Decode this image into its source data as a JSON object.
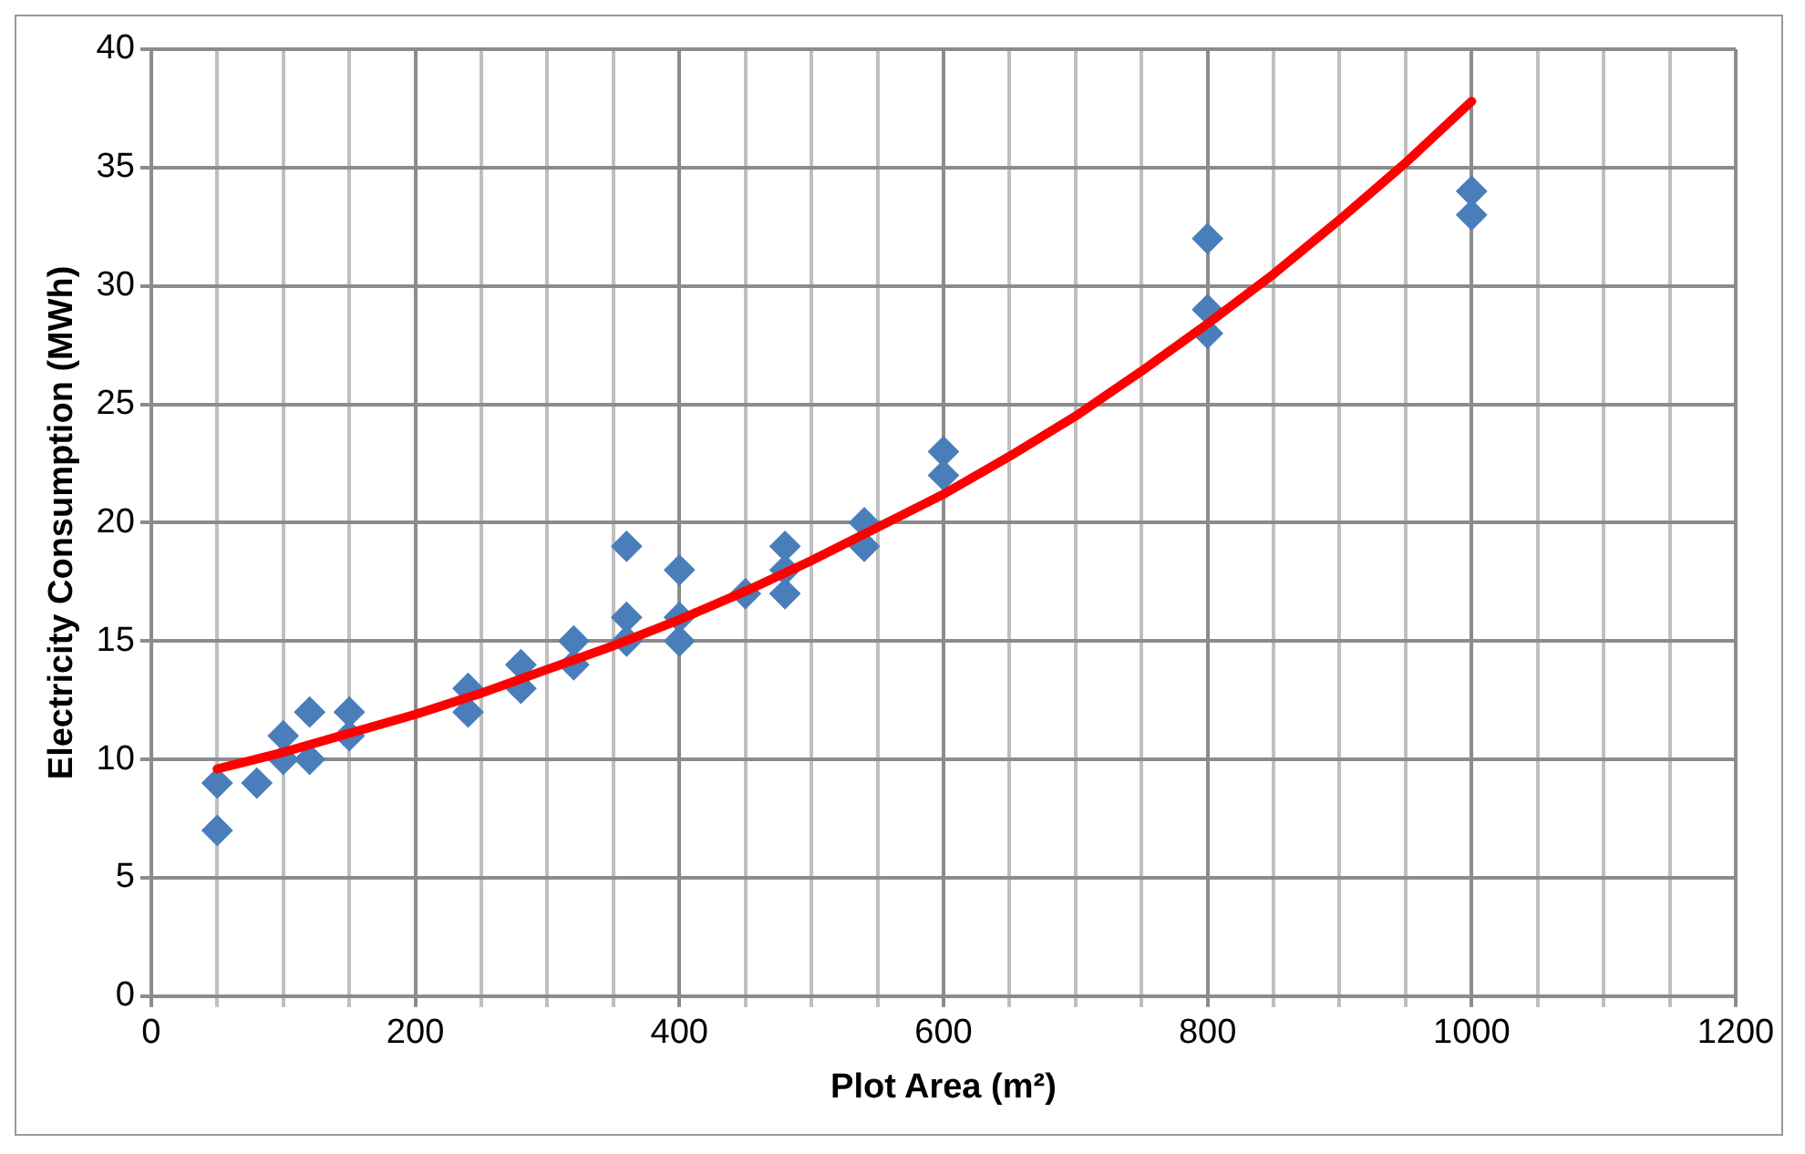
{
  "chart_data": {
    "type": "scatter",
    "xlabel": "Plot Area (m²)",
    "ylabel": "Electricity Consumption (MWh)",
    "xlim": [
      0,
      1200
    ],
    "ylim": [
      0,
      40
    ],
    "xticks": [
      0,
      {
        "value": 50,
        "label": null
      },
      {
        "value": 100,
        "label": null
      },
      {
        "value": 150,
        "label": null
      },
      200,
      {
        "value": 250,
        "label": null
      },
      {
        "value": 300,
        "label": null
      },
      {
        "value": 350,
        "label": null
      },
      400,
      {
        "value": 450,
        "label": null
      },
      {
        "value": 500,
        "label": null
      },
      {
        "value": 550,
        "label": null
      },
      600,
      {
        "value": 650,
        "label": null
      },
      {
        "value": 700,
        "label": null
      },
      {
        "value": 750,
        "label": null
      },
      800,
      {
        "value": 850,
        "label": null
      },
      {
        "value": 900,
        "label": null
      },
      {
        "value": 950,
        "label": null
      },
      1000,
      {
        "value": 1050,
        "label": null
      },
      {
        "value": 1100,
        "label": null
      },
      {
        "value": 1150,
        "label": null
      },
      1200
    ],
    "yticks": [
      0,
      5,
      10,
      15,
      20,
      25,
      30,
      35,
      40
    ],
    "grid": true,
    "legend": false,
    "marker": "diamond",
    "series": [
      {
        "color": "#4a7ebb",
        "x": [
          50,
          50,
          80,
          100,
          100,
          120,
          120,
          150,
          150,
          240,
          240,
          280,
          280,
          320,
          320,
          360,
          360,
          360,
          400,
          400,
          400,
          450,
          480,
          480,
          480,
          540,
          540,
          600,
          600,
          800,
          800,
          800,
          1000,
          1000
        ],
        "values": [
          9,
          7,
          9,
          11,
          10,
          12,
          10,
          12,
          11,
          13,
          12,
          14,
          13,
          15,
          14,
          19,
          16,
          15,
          18,
          16,
          15,
          17,
          19,
          18,
          17,
          20,
          19,
          23,
          22,
          32,
          29,
          28,
          34,
          33
        ]
      },
      {
        "type": "line",
        "color": "#ff0000",
        "marker": "none",
        "line_style": "solid",
        "x": [
          50,
          100,
          150,
          200,
          250,
          300,
          350,
          400,
          450,
          500,
          550,
          600,
          650,
          700,
          750,
          800,
          850,
          900,
          950,
          1000
        ],
        "values": [
          9.6,
          10.3,
          11.1,
          11.9,
          12.8,
          13.8,
          14.8,
          15.9,
          17.1,
          18.4,
          19.8,
          21.2,
          22.8,
          24.5,
          26.4,
          28.4,
          30.5,
          32.8,
          35.2,
          37.8
        ]
      }
    ]
  }
}
